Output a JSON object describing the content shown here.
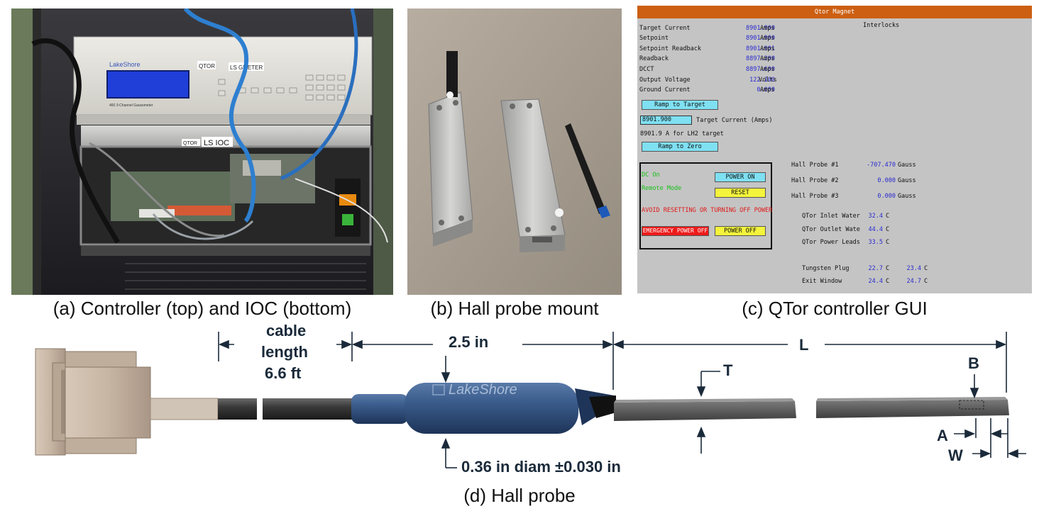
{
  "captions": {
    "a": "(a) Controller (top) and IOC (bottom)",
    "b": "(b) Hall probe mount",
    "c": "(c) QTor controller GUI",
    "d": "(d) Hall probe"
  },
  "photo_a": {
    "gaussmeter_brand": "LakeShore",
    "qtor_label": "QTOR",
    "gaussmeter_label": "LS GMETER",
    "gaussmeter_model": "460 3-Channel Gaussmeter",
    "ioc_qtor_label": "QTOR",
    "ioc_label": "LS IOC"
  },
  "gui": {
    "title": "Qtor Magnet",
    "interlocks_label": "Interlocks",
    "readings": [
      {
        "label": "Target Current",
        "value": "8901.900",
        "unit": "Amps"
      },
      {
        "label": "Setpoint",
        "value": "8901.900",
        "unit": "Amps"
      },
      {
        "label": "Setpoint Readback",
        "value": "8901.901",
        "unit": "Amps"
      },
      {
        "label": "Readback",
        "value": "8897.200",
        "unit": "Amps"
      },
      {
        "label": "DCCT",
        "value": "8897.600",
        "unit": "Amps"
      },
      {
        "label": "Output Voltage",
        "value": "122.100",
        "unit": "Volts"
      },
      {
        "label": "Ground Current",
        "value": "0.000",
        "unit": "Amps"
      }
    ],
    "ramp_to_target": "Ramp to Target",
    "target_input_value": "8901.900",
    "target_input_label": "Target Current (Amps)",
    "target_note": "8901.9 A for LH2 target",
    "ramp_to_zero": "Ramp to Zero",
    "dc_on": "DC On",
    "remote_mode": "Remote Mode",
    "power_on": "POWER ON",
    "reset": "RESET",
    "warning": "AVOID RESETTING OR TURNING OFF POWER",
    "emergency_off": "EMERGENCY POWER OFF",
    "power_off": "POWER OFF",
    "hall_probes": [
      {
        "label": "Hall Probe #1",
        "value": "-707.470",
        "unit": "Gauss"
      },
      {
        "label": "Hall Probe #2",
        "value": "0.000",
        "unit": "Gauss"
      },
      {
        "label": "Hall Probe #3",
        "value": "0.000",
        "unit": "Gauss"
      }
    ],
    "temps": [
      {
        "label": "QTor Inlet Water",
        "value": "32.4",
        "unit": "C"
      },
      {
        "label": "QTor Outlet Wate",
        "value": "44.4",
        "unit": "C"
      },
      {
        "label": "QTor Power Leads",
        "value": "33.5",
        "unit": "C"
      }
    ],
    "temps2": [
      {
        "label": "Tungsten Plug",
        "value": "22.7",
        "unit": "C",
        "value2": "23.4",
        "unit2": "C"
      },
      {
        "label": "Exit Window",
        "value": "24.4",
        "unit": "C",
        "value2": "24.7",
        "unit2": "C"
      }
    ]
  },
  "diagram": {
    "cable_length": [
      "cable",
      "length",
      "6.6 ft"
    ],
    "len_2_5": "2.5 in",
    "L": "L",
    "T": "T",
    "B": "B",
    "A": "A",
    "W": "W",
    "diam": "0.36 in diam ±0.030 in",
    "brand": "LakeShore"
  }
}
